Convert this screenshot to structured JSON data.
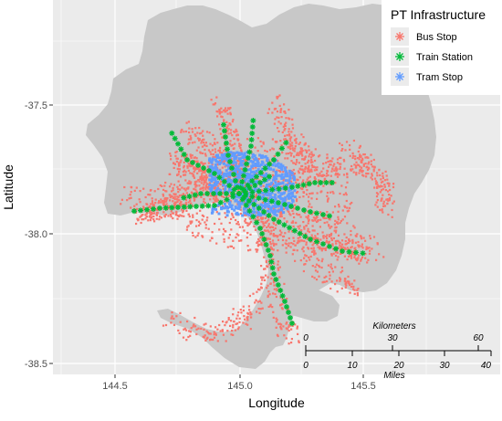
{
  "legend": {
    "title": "PT Infrastructure",
    "items": [
      {
        "label": "Bus Stop",
        "color": "#F8766D",
        "glyph": "asterisk"
      },
      {
        "label": "Train Station",
        "color": "#00BA38",
        "glyph": "asterisk"
      },
      {
        "label": "Tram Stop",
        "color": "#619CFF",
        "glyph": "asterisk"
      }
    ]
  },
  "axes": {
    "xlabel": "Longitude",
    "ylabel": "Latitude",
    "x_ticks": [
      "144.5",
      "145.0",
      "145.5"
    ],
    "y_ticks": [
      "-37.5",
      "-38.0",
      "-38.5"
    ]
  },
  "scalebar": {
    "top_label": "Kilometers",
    "top_ticks": [
      "0",
      "30",
      "60"
    ],
    "bottom_ticks": [
      "0",
      "10",
      "20",
      "30",
      "40"
    ],
    "bottom_label": "Miles"
  },
  "colors": {
    "panel_bg": "#EBEBEB",
    "land": "#C8C8C8",
    "grid": "#FFFFFF",
    "bus": "#F8766D",
    "train": "#00BA38",
    "tram": "#619CFF"
  }
}
